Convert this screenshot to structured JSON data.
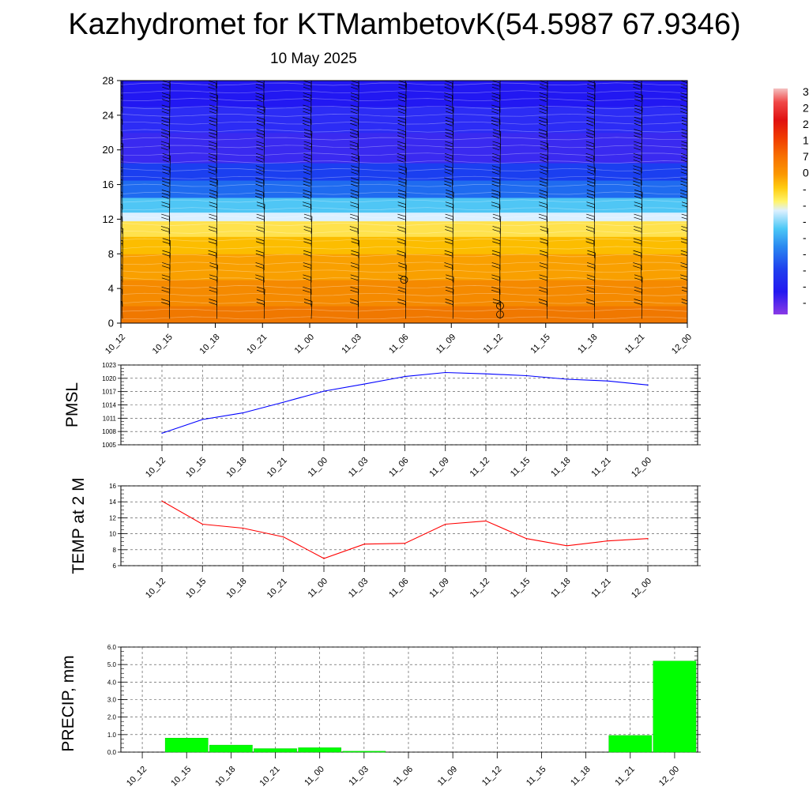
{
  "title": "Kazhydromet for KTMambetovK(54.5987 67.9346)",
  "date": "10 May 2025",
  "colorbar": {
    "labels": [
      "3",
      "2",
      "2",
      "1",
      "7",
      "0",
      "-",
      "-",
      "-",
      "-",
      "-",
      "-",
      "-",
      "-"
    ]
  },
  "chart_data": [
    {
      "type": "heatmap",
      "title": "",
      "x": [
        "10_12",
        "10_15",
        "10_18",
        "10_21",
        "11_00",
        "11_03",
        "11_06",
        "11_09",
        "11_12",
        "11_15",
        "11_18",
        "11_21",
        "12_00"
      ],
      "yticks": [
        0,
        4,
        8,
        12,
        16,
        20,
        24,
        28
      ],
      "ylim": [
        0,
        28
      ],
      "bands": [
        {
          "y": [
            0,
            2
          ],
          "color": "#f07800"
        },
        {
          "y": [
            2,
            5
          ],
          "color": "#f58a00"
        },
        {
          "y": [
            5,
            8
          ],
          "color": "#f9a000"
        },
        {
          "y": [
            8,
            10
          ],
          "color": "#fcbd00"
        },
        {
          "y": [
            10,
            11.8
          ],
          "color": "#ffe24d"
        },
        {
          "y": [
            11.8,
            12.8
          ],
          "color": "#dcf0ff"
        },
        {
          "y": [
            12.8,
            14.5
          ],
          "color": "#4fc6f5"
        },
        {
          "y": [
            14.5,
            16.5
          ],
          "color": "#1f6bf0"
        },
        {
          "y": [
            16.5,
            18.5
          ],
          "color": "#1b3ff0"
        },
        {
          "y": [
            18.5,
            22
          ],
          "color": "#3a2af0"
        },
        {
          "y": [
            22,
            25
          ],
          "color": "#2c2cf5"
        },
        {
          "y": [
            25,
            28
          ],
          "color": "#2218f2"
        }
      ]
    },
    {
      "type": "line",
      "ylabel": "PMSL",
      "x": [
        "10_12",
        "10_15",
        "10_18",
        "10_21",
        "11_00",
        "11_03",
        "11_06",
        "11_09",
        "11_12",
        "11_15",
        "11_18",
        "11_21",
        "12_00"
      ],
      "values": [
        1007.6,
        1010.7,
        1012.2,
        1014.6,
        1017.1,
        1018.7,
        1020.4,
        1021.3,
        1021.0,
        1020.6,
        1019.8,
        1019.4,
        1018.5
      ],
      "ylim": [
        1005,
        1023
      ],
      "yticks": [
        1005,
        1008,
        1011,
        1014,
        1017,
        1020,
        1023
      ],
      "color": "#0000ff"
    },
    {
      "type": "line",
      "ylabel": "TEMP at 2 M",
      "x": [
        "10_12",
        "10_15",
        "10_18",
        "10_21",
        "11_00",
        "11_03",
        "11_06",
        "11_09",
        "11_12",
        "11_15",
        "11_18",
        "11_21",
        "12_00"
      ],
      "values": [
        14.1,
        11.2,
        10.7,
        9.6,
        6.9,
        8.7,
        8.8,
        11.2,
        11.6,
        9.4,
        8.5,
        9.1,
        9.4
      ],
      "ylim": [
        6,
        16
      ],
      "yticks": [
        6,
        8,
        10,
        12,
        14,
        16
      ],
      "color": "#ff0000"
    },
    {
      "type": "bar",
      "ylabel": "PRECIP, mm",
      "categories": [
        "10_12",
        "10_15",
        "10_18",
        "10_21",
        "11_00",
        "11_03",
        "11_06",
        "11_09",
        "11_12",
        "11_15",
        "11_18",
        "11_21",
        "12_00"
      ],
      "values": [
        0.0,
        0.8,
        0.4,
        0.2,
        0.25,
        0.05,
        0.0,
        0.0,
        0.0,
        0.0,
        0.0,
        0.95,
        5.2
      ],
      "ylim": [
        0,
        6
      ],
      "yticks": [
        "0.0",
        "1.0",
        "2.0",
        "3.0",
        "4.0",
        "5.0",
        "6.0"
      ],
      "color": "#00ff00"
    }
  ]
}
